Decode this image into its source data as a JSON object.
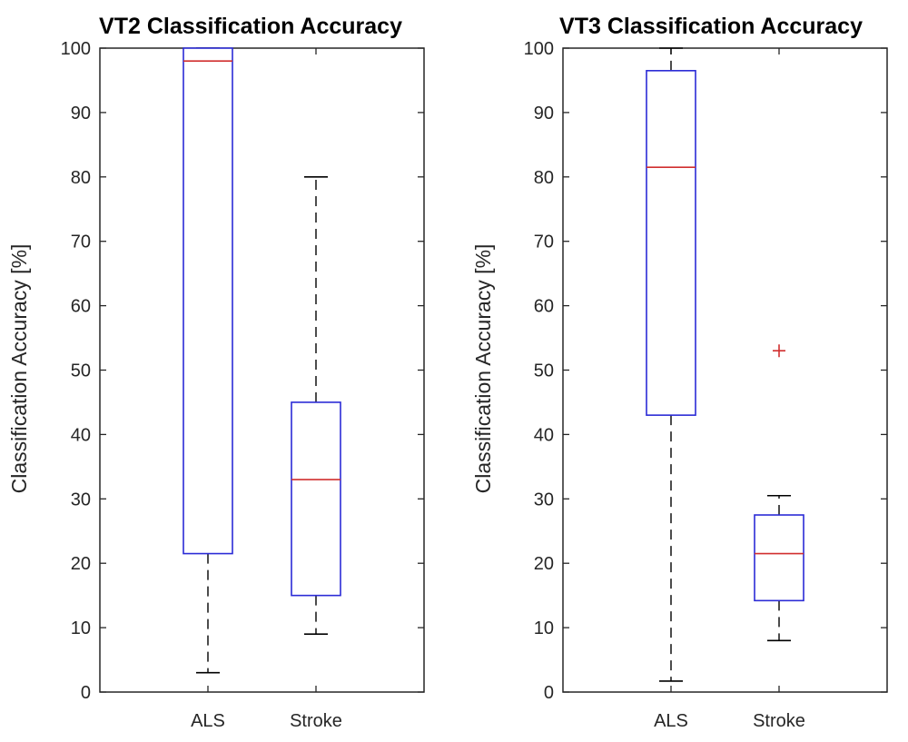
{
  "chart_data": [
    {
      "type": "box",
      "title": "VT2 Classification Accuracy",
      "xlabel": "",
      "ylabel": "Classification Accuracy [%]",
      "ylim": [
        0,
        100
      ],
      "yticks": [
        0,
        10,
        20,
        30,
        40,
        50,
        60,
        70,
        80,
        90,
        100
      ],
      "grid": false,
      "categories": [
        "ALS",
        "Stroke"
      ],
      "boxes": [
        {
          "name": "ALS",
          "whisker_low": 3,
          "q1": 21.5,
          "median": 98,
          "q3": 100,
          "whisker_high": 100,
          "outliers": []
        },
        {
          "name": "Stroke",
          "whisker_low": 9,
          "q1": 15,
          "median": 33,
          "q3": 45,
          "whisker_high": 80,
          "outliers": []
        }
      ]
    },
    {
      "type": "box",
      "title": "VT3 Classification Accuracy",
      "xlabel": "",
      "ylabel": "Classification Accuracy [%]",
      "ylim": [
        0,
        100
      ],
      "yticks": [
        0,
        10,
        20,
        30,
        40,
        50,
        60,
        70,
        80,
        90,
        100
      ],
      "grid": false,
      "categories": [
        "ALS",
        "Stroke"
      ],
      "boxes": [
        {
          "name": "ALS",
          "whisker_low": 1.7,
          "q1": 43,
          "median": 81.5,
          "q3": 96.5,
          "whisker_high": 100,
          "outliers": []
        },
        {
          "name": "Stroke",
          "whisker_low": 8,
          "q1": 14.2,
          "median": 21.5,
          "q3": 27.5,
          "whisker_high": 30.5,
          "outliers": [
            53
          ]
        }
      ]
    }
  ],
  "colors": {
    "box": "#2b2bd6",
    "median": "#d12f2f",
    "whisker": "#000000",
    "outlier": "#d12f2f",
    "axis": "#262626"
  }
}
